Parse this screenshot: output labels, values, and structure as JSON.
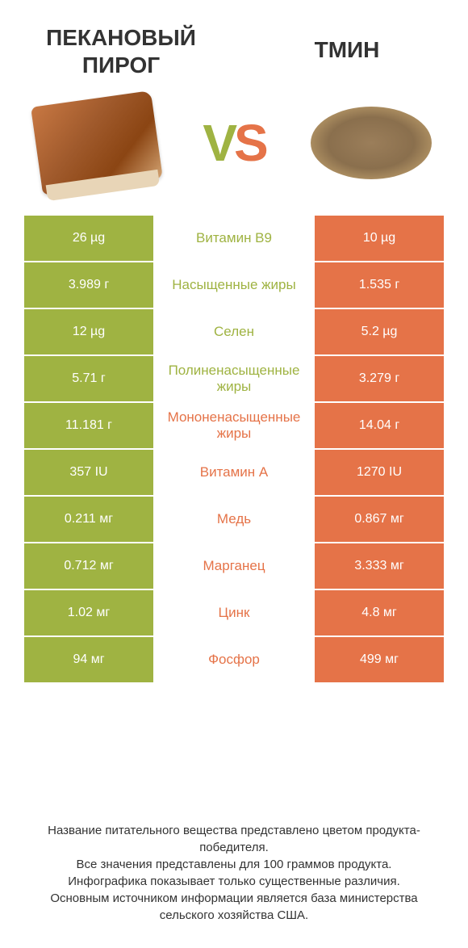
{
  "header": {
    "left_title": "ПЕКАНОВЫЙ ПИРОГ",
    "right_title": "ТМИН",
    "vs": "VS"
  },
  "colors": {
    "green": "#9fb342",
    "red": "#e57348",
    "text": "#333333",
    "bg": "#ffffff"
  },
  "rows": [
    {
      "left": "26 µg",
      "mid": "Витамин B9",
      "right": "10 µg",
      "winner": "left"
    },
    {
      "left": "3.989 г",
      "mid": "Насыщенные жиры",
      "right": "1.535 г",
      "winner": "left"
    },
    {
      "left": "12 µg",
      "mid": "Селен",
      "right": "5.2 µg",
      "winner": "left"
    },
    {
      "left": "5.71 г",
      "mid": "Полиненасыщенные жиры",
      "right": "3.279 г",
      "winner": "left"
    },
    {
      "left": "11.181 г",
      "mid": "Мононенасыщенные жиры",
      "right": "14.04 г",
      "winner": "right"
    },
    {
      "left": "357 IU",
      "mid": "Витамин A",
      "right": "1270 IU",
      "winner": "right"
    },
    {
      "left": "0.211 мг",
      "mid": "Медь",
      "right": "0.867 мг",
      "winner": "right"
    },
    {
      "left": "0.712 мг",
      "mid": "Марганец",
      "right": "3.333 мг",
      "winner": "right"
    },
    {
      "left": "1.02 мг",
      "mid": "Цинк",
      "right": "4.8 мг",
      "winner": "right"
    },
    {
      "left": "94 мг",
      "mid": "Фосфор",
      "right": "499 мг",
      "winner": "right"
    }
  ],
  "footer": {
    "line1": "Название питательного вещества представлено цветом продукта-победителя.",
    "line2": "Все значения представлены для 100 граммов продукта.",
    "line3": "Инфографика показывает только существенные различия.",
    "line4": "Основным источником информации является база министерства сельского хозяйства США."
  }
}
